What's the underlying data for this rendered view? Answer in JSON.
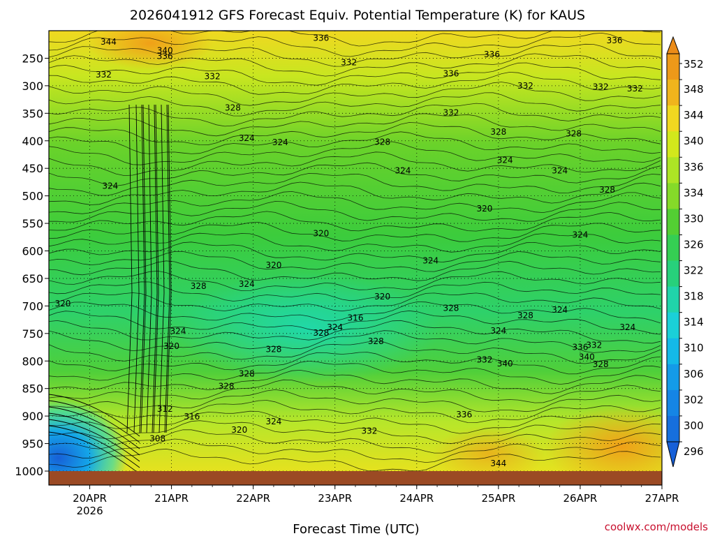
{
  "chart_data": {
    "type": "heatmap",
    "title": "2026041912 GFS Forecast Equiv. Potential Temperature (K) for KAUS",
    "xlabel": "Forecast Time (UTC)",
    "ylabel": "",
    "x_ticks": [
      {
        "label": "20APR",
        "sublabel": "2026",
        "day": 1
      },
      {
        "label": "21APR",
        "sublabel": "",
        "day": 2
      },
      {
        "label": "22APR",
        "sublabel": "",
        "day": 3
      },
      {
        "label": "23APR",
        "sublabel": "",
        "day": 4
      },
      {
        "label": "24APR",
        "sublabel": "",
        "day": 5
      },
      {
        "label": "25APR",
        "sublabel": "",
        "day": 6
      },
      {
        "label": "26APR",
        "sublabel": "",
        "day": 7
      },
      {
        "label": "27APR",
        "sublabel": "",
        "day": 8
      }
    ],
    "xlim_days": [
      0.5,
      8
    ],
    "y_ticks": [
      "250",
      "300",
      "350",
      "400",
      "450",
      "500",
      "550",
      "600",
      "650",
      "700",
      "750",
      "800",
      "850",
      "900",
      "950",
      "1000"
    ],
    "y_values": [
      250,
      300,
      350,
      400,
      450,
      500,
      550,
      600,
      650,
      700,
      750,
      800,
      850,
      900,
      950,
      1000
    ],
    "ylim_hpa": [
      200,
      1000
    ],
    "ground_hpa": 1000,
    "colorbar": {
      "levels": [
        "352",
        "348",
        "344",
        "340",
        "336",
        "334",
        "330",
        "326",
        "322",
        "318",
        "314",
        "310",
        "306",
        "302",
        "300",
        "296"
      ],
      "values": [
        352,
        348,
        344,
        340,
        336,
        334,
        330,
        326,
        322,
        318,
        314,
        310,
        306,
        302,
        300,
        296
      ]
    },
    "contour_labels": [
      {
        "text": "344",
        "day": 1.23,
        "p": 220
      },
      {
        "text": "340",
        "day": 1.92,
        "p": 236
      },
      {
        "text": "336",
        "day": 1.92,
        "p": 246
      },
      {
        "text": "336",
        "day": 3.83,
        "p": 213
      },
      {
        "text": "336",
        "day": 5.92,
        "p": 243
      },
      {
        "text": "336",
        "day": 7.42,
        "p": 218
      },
      {
        "text": "332",
        "day": 1.17,
        "p": 280
      },
      {
        "text": "332",
        "day": 2.5,
        "p": 283
      },
      {
        "text": "332",
        "day": 4.17,
        "p": 258
      },
      {
        "text": "336",
        "day": 5.42,
        "p": 278
      },
      {
        "text": "332",
        "day": 6.33,
        "p": 300
      },
      {
        "text": "332",
        "day": 7.25,
        "p": 302
      },
      {
        "text": "332",
        "day": 7.67,
        "p": 305
      },
      {
        "text": "332",
        "day": 5.42,
        "p": 349
      },
      {
        "text": "328",
        "day": 2.75,
        "p": 340
      },
      {
        "text": "328",
        "day": 6.0,
        "p": 384
      },
      {
        "text": "328",
        "day": 6.92,
        "p": 387
      },
      {
        "text": "328",
        "day": 4.58,
        "p": 402
      },
      {
        "text": "324",
        "day": 2.92,
        "p": 395
      },
      {
        "text": "324",
        "day": 3.33,
        "p": 403
      },
      {
        "text": "324",
        "day": 6.08,
        "p": 435
      },
      {
        "text": "324",
        "day": 6.75,
        "p": 454
      },
      {
        "text": "324",
        "day": 4.83,
        "p": 454
      },
      {
        "text": "324",
        "day": 1.25,
        "p": 482
      },
      {
        "text": "320",
        "day": 5.83,
        "p": 523
      },
      {
        "text": "328",
        "day": 7.33,
        "p": 489
      },
      {
        "text": "320",
        "day": 3.83,
        "p": 568
      },
      {
        "text": "324",
        "day": 5.17,
        "p": 618
      },
      {
        "text": "324",
        "day": 7.0,
        "p": 571
      },
      {
        "text": "320",
        "day": 3.25,
        "p": 626
      },
      {
        "text": "328",
        "day": 2.33,
        "p": 664
      },
      {
        "text": "324",
        "day": 2.92,
        "p": 660
      },
      {
        "text": "320",
        "day": 4.58,
        "p": 683
      },
      {
        "text": "320",
        "day": 0.67,
        "p": 696
      },
      {
        "text": "328",
        "day": 5.42,
        "p": 704
      },
      {
        "text": "328",
        "day": 6.33,
        "p": 717
      },
      {
        "text": "324",
        "day": 6.75,
        "p": 707
      },
      {
        "text": "316",
        "day": 4.25,
        "p": 722
      },
      {
        "text": "324",
        "day": 4.0,
        "p": 739
      },
      {
        "text": "328",
        "day": 3.83,
        "p": 749
      },
      {
        "text": "324",
        "day": 2.08,
        "p": 746
      },
      {
        "text": "324",
        "day": 6.0,
        "p": 745
      },
      {
        "text": "324",
        "day": 7.58,
        "p": 739
      },
      {
        "text": "328",
        "day": 4.5,
        "p": 764
      },
      {
        "text": "320",
        "day": 2.0,
        "p": 773
      },
      {
        "text": "328",
        "day": 3.25,
        "p": 779
      },
      {
        "text": "336",
        "day": 7.0,
        "p": 775
      },
      {
        "text": "332",
        "day": 7.17,
        "p": 771
      },
      {
        "text": "332",
        "day": 5.83,
        "p": 798
      },
      {
        "text": "340",
        "day": 6.08,
        "p": 805
      },
      {
        "text": "340",
        "day": 7.08,
        "p": 793
      },
      {
        "text": "328",
        "day": 7.25,
        "p": 806
      },
      {
        "text": "328",
        "day": 2.92,
        "p": 823
      },
      {
        "text": "328",
        "day": 2.67,
        "p": 846
      },
      {
        "text": "312",
        "day": 1.92,
        "p": 887
      },
      {
        "text": "316",
        "day": 2.25,
        "p": 901
      },
      {
        "text": "324",
        "day": 3.25,
        "p": 910
      },
      {
        "text": "336",
        "day": 5.58,
        "p": 897
      },
      {
        "text": "320",
        "day": 2.83,
        "p": 925
      },
      {
        "text": "332",
        "day": 4.42,
        "p": 927
      },
      {
        "text": "308",
        "day": 1.83,
        "p": 941
      },
      {
        "text": "344",
        "day": 6.0,
        "p": 986
      }
    ]
  },
  "watermark": "coolwx.com/models",
  "colors": {
    "ground": "#9b4a24",
    "plot_border": "#000000"
  }
}
